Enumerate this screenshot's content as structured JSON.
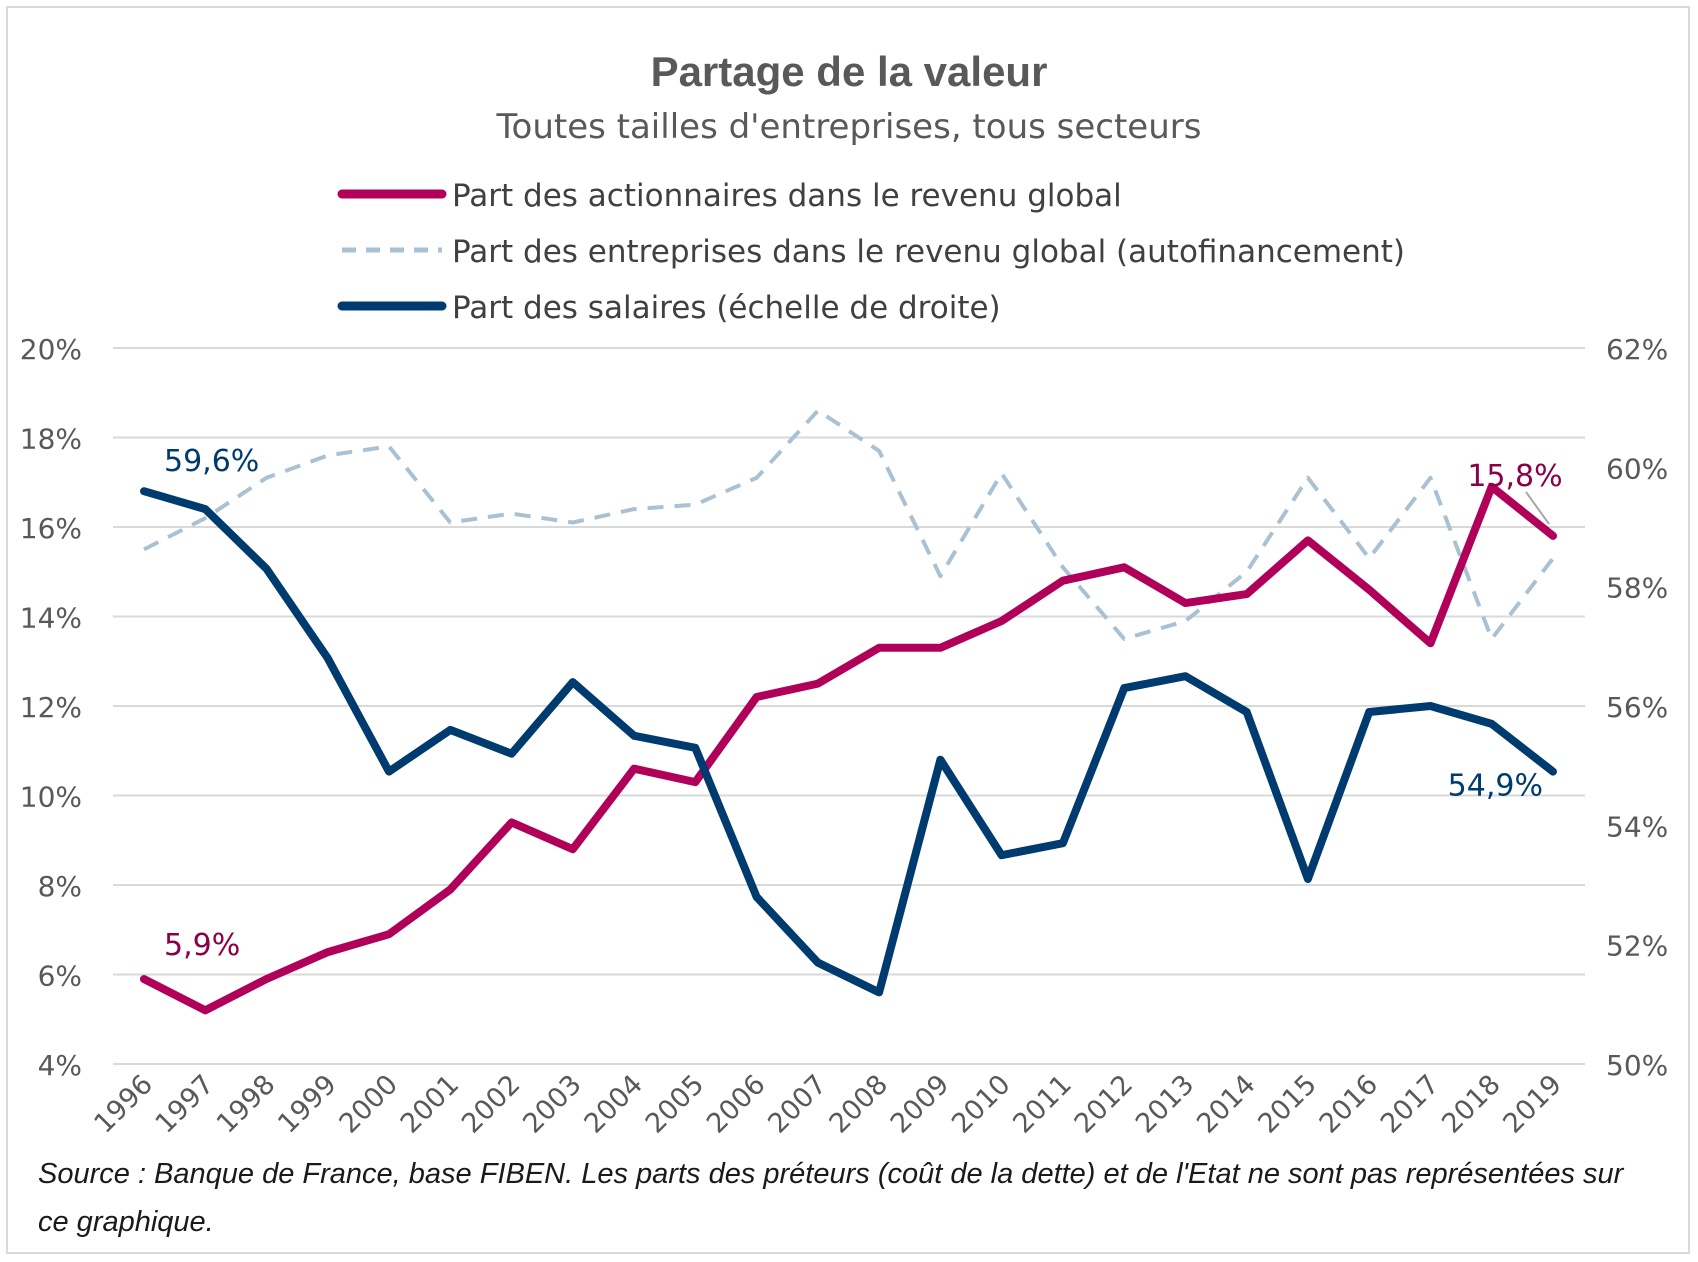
{
  "chart_data": {
    "type": "line",
    "title": "Partage de la valeur",
    "subtitle": "Toutes tailles d'entreprises, tous secteurs",
    "x": [
      "1996",
      "1997",
      "1998",
      "1999",
      "2000",
      "2001",
      "2002",
      "2003",
      "2004",
      "2005",
      "2006",
      "2007",
      "2008",
      "2009",
      "2010",
      "2011",
      "2012",
      "2013",
      "2014",
      "2015",
      "2016",
      "2017",
      "2018",
      "2019"
    ],
    "left_axis": {
      "min": 4,
      "max": 20,
      "step": 2,
      "ticks": [
        "20%",
        "18%",
        "16%",
        "14%",
        "12%",
        "10%",
        "8%",
        "6%",
        "4%"
      ]
    },
    "right_axis": {
      "min": 50,
      "max": 62,
      "step": 2,
      "ticks": [
        "62%",
        "60%",
        "58%",
        "56%",
        "54%",
        "52%",
        "50%"
      ]
    },
    "series": [
      {
        "name": "Part des actionnaires dans le revenu global",
        "axis": "left",
        "color": "#b0005a",
        "style": "solid",
        "values": [
          5.9,
          5.2,
          5.9,
          6.5,
          6.9,
          7.9,
          9.4,
          8.8,
          10.6,
          10.3,
          12.2,
          12.5,
          13.3,
          13.3,
          13.9,
          14.8,
          15.1,
          14.3,
          14.5,
          15.7,
          14.6,
          13.4,
          16.9,
          15.8
        ]
      },
      {
        "name": "Part des entreprises dans le revenu global (autofinancement)",
        "axis": "left",
        "color": "#a9c1d3",
        "style": "dashed",
        "values": [
          15.5,
          16.2,
          17.1,
          17.6,
          17.8,
          16.1,
          16.3,
          16.1,
          16.4,
          16.5,
          17.1,
          18.6,
          17.7,
          14.9,
          17.2,
          15.1,
          13.5,
          13.9,
          15.0,
          17.1,
          15.3,
          17.1,
          13.5,
          15.3
        ]
      },
      {
        "name": "Part des salaires (échelle de droite)",
        "axis": "right",
        "color": "#003b6f",
        "style": "solid",
        "values": [
          59.6,
          59.3,
          58.3,
          56.8,
          54.9,
          55.6,
          55.2,
          56.4,
          55.5,
          55.3,
          52.8,
          51.7,
          51.2,
          55.1,
          53.5,
          53.7,
          56.3,
          56.5,
          55.9,
          53.1,
          55.9,
          56.0,
          55.7,
          54.9
        ]
      }
    ],
    "annotations": [
      {
        "text": "59,6%",
        "series": 2,
        "index": 0,
        "color": "#003b6f"
      },
      {
        "text": "54,9%",
        "series": 2,
        "index": 23,
        "color": "#003b6f"
      },
      {
        "text": "5,9%",
        "series": 0,
        "index": 0,
        "color": "#8b0048"
      },
      {
        "text": "15,8%",
        "series": 0,
        "index": 23,
        "color": "#8b0048"
      }
    ],
    "grid": true,
    "legend_position": "top"
  },
  "source_note": "Source : Banque de France, base FIBEN. Les parts des préteurs (coût de la dette) et de l'Etat ne sont pas représentées sur ce graphique."
}
